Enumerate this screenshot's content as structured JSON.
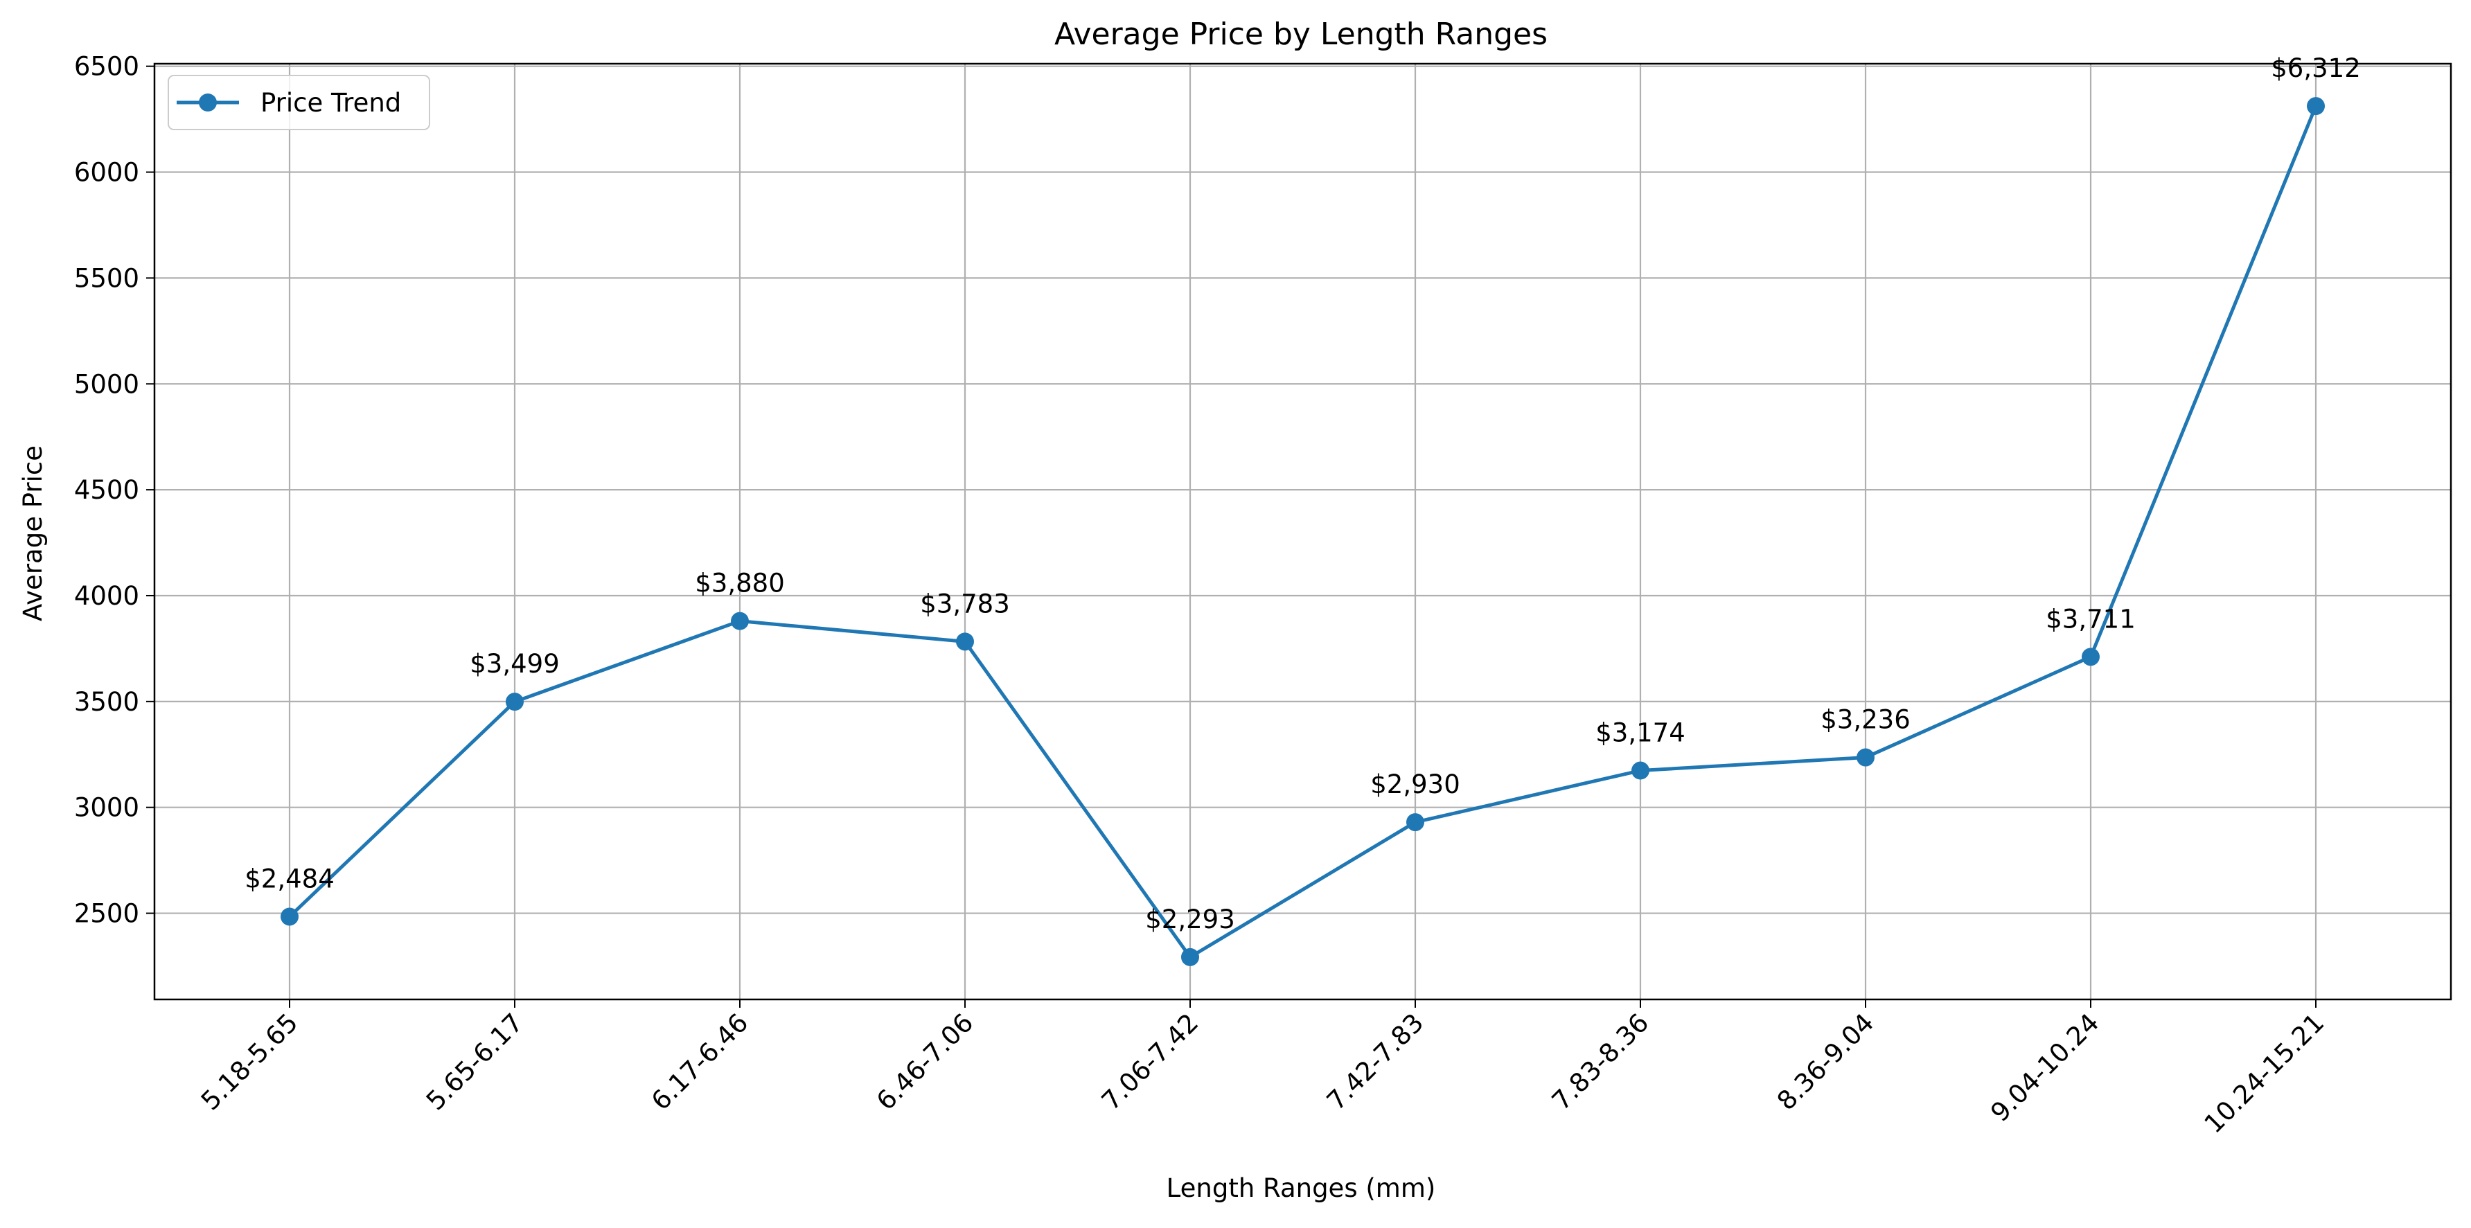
{
  "chart_data": {
    "type": "line",
    "title": "Average Price by Length Ranges",
    "xlabel": "Length Ranges (mm)",
    "ylabel": "Average Price",
    "categories": [
      "5.18-5.65",
      "5.65-6.17",
      "6.17-6.46",
      "6.46-7.06",
      "7.06-7.42",
      "7.42-7.83",
      "7.83-8.36",
      "8.36-9.04",
      "9.04-10.24",
      "10.24-15.21"
    ],
    "series": [
      {
        "name": "Price Trend",
        "values": [
          2484,
          3499,
          3880,
          3783,
          2293,
          2930,
          3174,
          3236,
          3711,
          6312
        ],
        "data_labels": [
          "$2,484",
          "$3,499",
          "$3,880",
          "$3,783",
          "$2,293",
          "$2,930",
          "$3,174",
          "$3,236",
          "$3,711",
          "$6,312"
        ],
        "color": "#1f77b4",
        "marker": "circle"
      }
    ],
    "yticks": [
      2500,
      3000,
      3500,
      4000,
      4500,
      5000,
      5500,
      6000,
      6500
    ],
    "ylim": [
      2093,
      6512
    ],
    "grid": true,
    "legend_position": "top-left",
    "xtick_rotation": 45
  }
}
